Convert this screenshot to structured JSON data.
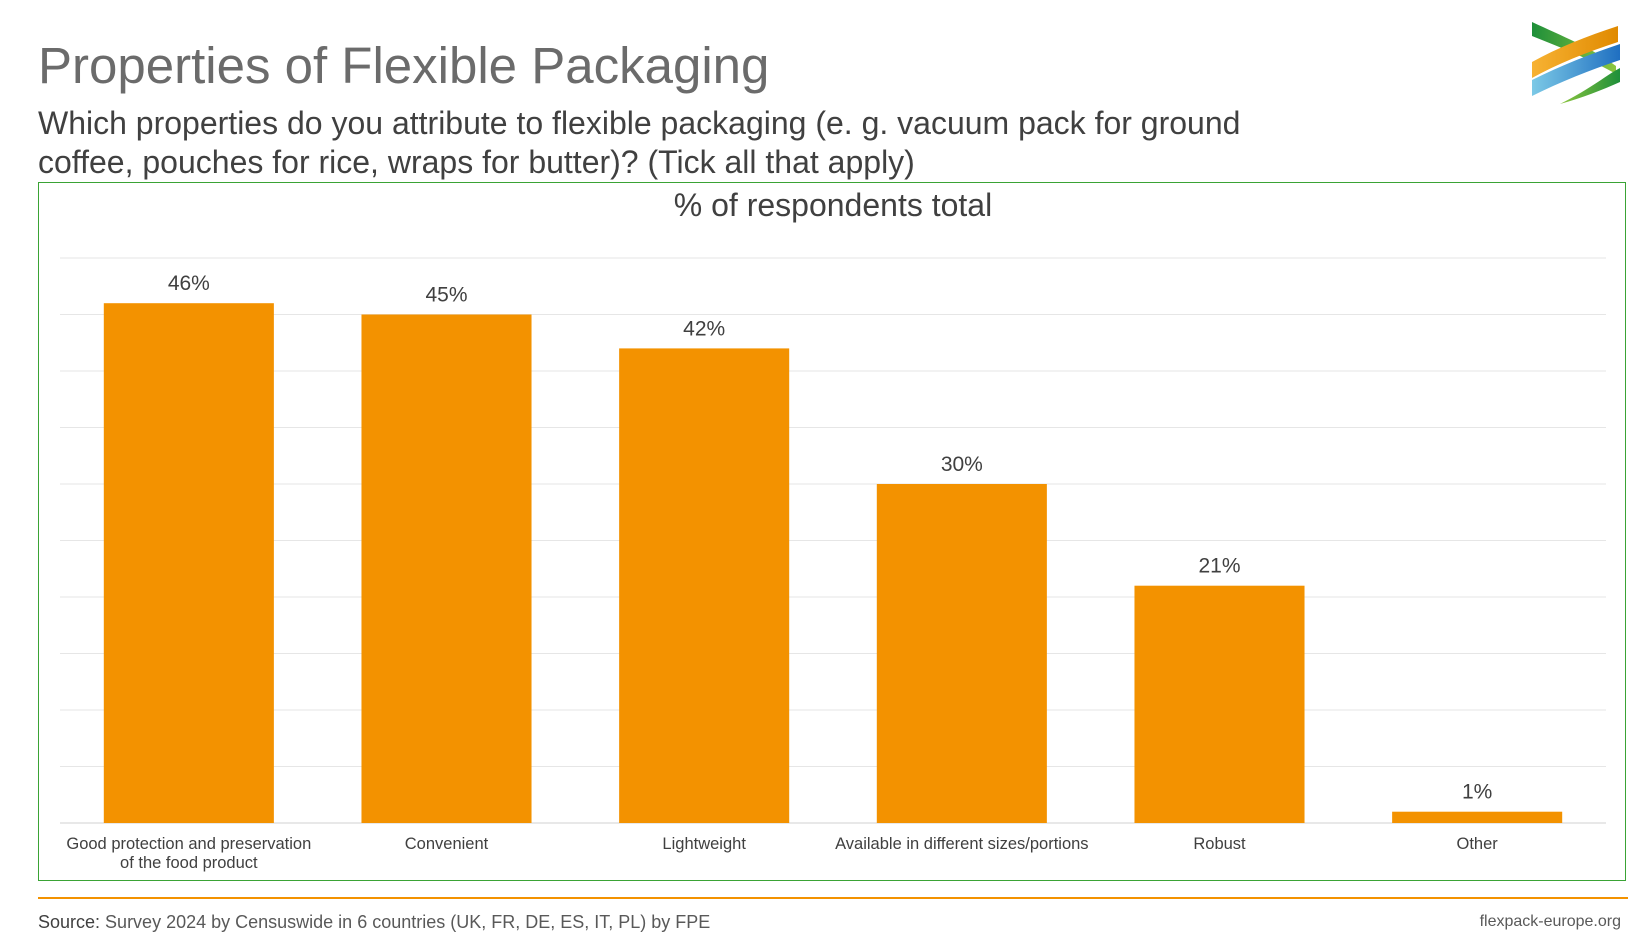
{
  "header": {
    "title": "Properties of Flexible Packaging",
    "subtitle": "Which properties do you attribute to flexible packaging (e. g. vacuum pack for ground coffee, pouches for rice, wraps for butter)? (Tick all that apply)"
  },
  "logo": {
    "name": "flexpack-europe-logo",
    "colors": [
      "#2e9a3a",
      "#f39200",
      "#1f7bc1",
      "#8cc63f"
    ]
  },
  "chart_data": {
    "type": "bar",
    "title": "% of respondents total",
    "categories": [
      "Good protection and preservation of the food product",
      "Convenient",
      "Lightweight",
      "Available in different sizes/portions",
      "Robust",
      "Other"
    ],
    "category_lines": [
      [
        "Good protection and preservation",
        "of the food product"
      ],
      [
        "Convenient"
      ],
      [
        "Lightweight"
      ],
      [
        "Available in different sizes/portions"
      ],
      [
        "Robust"
      ],
      [
        "Other"
      ]
    ],
    "values": [
      46,
      45,
      42,
      30,
      21,
      1
    ],
    "data_labels": [
      "46%",
      "45%",
      "42%",
      "30%",
      "21%",
      "1%"
    ],
    "ylim": [
      0,
      50
    ],
    "ytick_step": 5,
    "grid": true,
    "bar_color": "#f39200",
    "border_color": "#3aa335"
  },
  "footer": {
    "source_label": "Source:",
    "source_text": " Survey 2024 by Censuswide in 6 countries (UK, FR, DE, ES, IT, PL) by FPE",
    "site": "flexpack-europe.org",
    "rule_color": "#f39200"
  }
}
